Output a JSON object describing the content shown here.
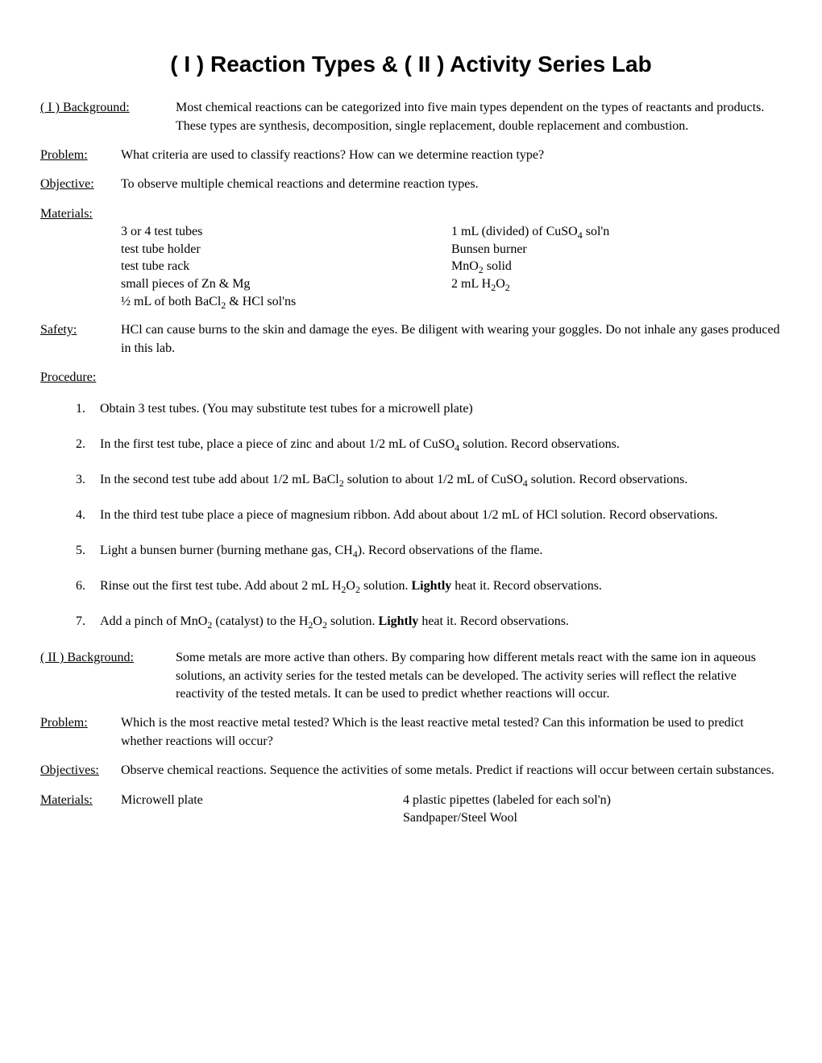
{
  "title": "( I ) Reaction Types & ( II ) Activity Series Lab",
  "part1": {
    "background": {
      "label": "( I ) Background:",
      "text": "Most chemical reactions can be categorized into five main types dependent on the types of reactants and products. These types are synthesis, decomposition, single replacement, double replacement and combustion."
    },
    "problem": {
      "label": "Problem:",
      "text": "What criteria are used to classify reactions? How can we determine reaction type?"
    },
    "objective": {
      "label": "Objective:",
      "text": "To observe multiple chemical reactions and determine reaction types."
    },
    "materials": {
      "label": "Materials:",
      "col1": [
        "3 or 4 test tubes",
        "test tube holder",
        "test tube rack",
        "small pieces of Zn & Mg",
        "½ mL of both BaCl₂ & HCl sol'ns"
      ],
      "col2": [
        "1 mL (divided) of CuSO₄ sol'n",
        "Bunsen burner",
        "MnO₂ solid",
        "2 mL H₂O₂"
      ]
    },
    "safety": {
      "label": "Safety:",
      "text": "HCl can cause burns to the skin and damage the eyes. Be diligent with wearing your goggles. Do not inhale any gases produced in this lab."
    },
    "procedure": {
      "label": "Procedure:",
      "steps": [
        "Obtain 3 test tubes. (You may substitute test tubes for a microwell plate)",
        "In the first test tube, place a piece of zinc and about 1/2 mL of CuSO₄ solution. Record observations.",
        "In the second test tube add about 1/2 mL BaCl₂ solution to about 1/2 mL of CuSO₄ solution. Record observations.",
        "In the third test tube place a piece of magnesium ribbon. Add about about 1/2 mL of HCl solution. Record observations.",
        "Light a bunsen burner (burning methane gas, CH₄). Record observations of the flame.",
        "Rinse out the first test tube. Add about 2 mL H₂O₂ solution. <b>Lightly</b> heat it. Record observations.",
        "Add a pinch of MnO₂ (catalyst) to the H₂O₂ solution. <b>Lightly</b> heat it. Record observations."
      ]
    }
  },
  "part2": {
    "background": {
      "label": "( II ) Background:",
      "text": "Some metals are more active than others. By comparing how different metals react with the same ion in aqueous solutions, an activity series for the tested metals can be developed. The activity series will reflect the relative reactivity of the tested metals. It can be used to predict whether reactions will occur."
    },
    "problem": {
      "label": "Problem:",
      "text": "Which is the most reactive metal tested? Which is the least reactive metal tested? Can this information be used to predict whether reactions will occur?"
    },
    "objectives": {
      "label": "Objectives:",
      "text": "Observe chemical reactions. Sequence the activities of some metals. Predict if reactions will occur between certain substances."
    },
    "materials": {
      "label": "Materials:",
      "col1": "Microwell plate",
      "col2a": "4 plastic pipettes (labeled for each sol'n)",
      "col2b": "Sandpaper/Steel Wool"
    }
  }
}
